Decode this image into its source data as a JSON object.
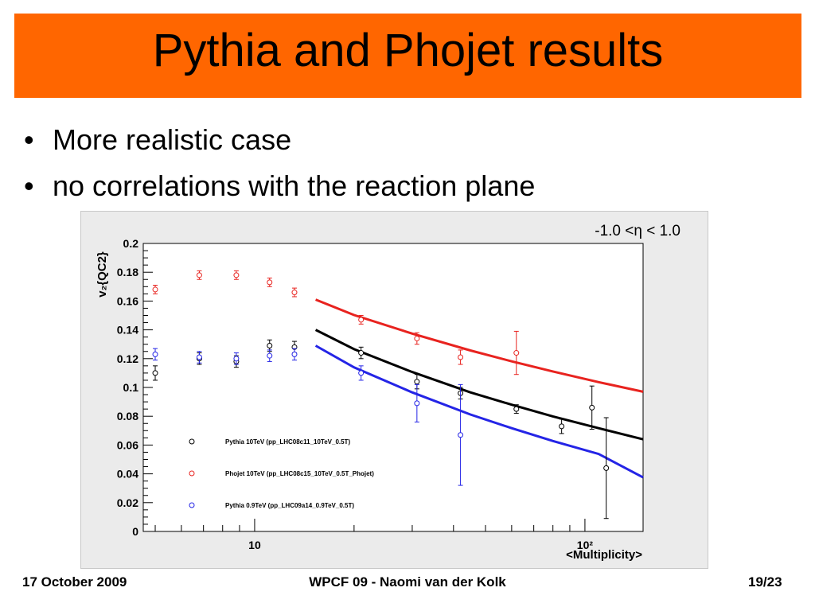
{
  "slide": {
    "title": "Pythia and Phojet results",
    "bullets": [
      "More realistic case",
      "no correlations with the reaction plane"
    ],
    "annotation": "-1.0 <η < 1.0"
  },
  "footer": {
    "date": "17 October 2009",
    "center": "WPCF 09 - Naomi van der Kolk",
    "page": "19/23"
  },
  "chart_data": {
    "type": "scatter",
    "xlabel": "<Multiplicity>",
    "ylabel": "v₂{QC2}",
    "x_scale": "log",
    "xlim": [
      4.6,
      150
    ],
    "ylim": [
      0,
      0.2
    ],
    "y_ticks": [
      0,
      0.02,
      0.04,
      0.06,
      0.08,
      0.1,
      0.12,
      0.14,
      0.16,
      0.18,
      0.2
    ],
    "y_tick_labels": [
      "0",
      "0.02",
      "0.04",
      "0.06",
      "0.08",
      "0.1",
      "0.12",
      "0.14",
      "0.16",
      "0.18",
      "0.2"
    ],
    "x_tick_labels": [
      {
        "value": 10,
        "label": "10"
      },
      {
        "value": 100,
        "label": "10²"
      }
    ],
    "legend_position": "lower-left",
    "series": [
      {
        "name": "Pythia 10TeV (pp_LHC08c11_10TeV_0.5T)",
        "color": "#000000",
        "points": [
          {
            "x": 5.0,
            "y": 0.11,
            "err": 0.005
          },
          {
            "x": 6.8,
            "y": 0.12,
            "err": 0.004
          },
          {
            "x": 8.8,
            "y": 0.118,
            "err": 0.004
          },
          {
            "x": 11.1,
            "y": 0.129,
            "err": 0.004
          },
          {
            "x": 13.2,
            "y": 0.128,
            "err": 0.004
          },
          {
            "x": 21.0,
            "y": 0.124,
            "err": 0.004
          },
          {
            "x": 31.0,
            "y": 0.104,
            "err": 0.005
          },
          {
            "x": 42.0,
            "y": 0.096,
            "err": 0.004
          },
          {
            "x": 62.0,
            "y": 0.085,
            "err": 0.003
          },
          {
            "x": 85.0,
            "y": 0.073,
            "err": 0.005
          },
          {
            "x": 105.0,
            "y": 0.086,
            "err": 0.015
          },
          {
            "x": 116.0,
            "y": 0.044,
            "err": 0.035
          }
        ],
        "fit": [
          {
            "x": 15.3,
            "y": 0.14
          },
          {
            "x": 20,
            "y": 0.1266
          },
          {
            "x": 30,
            "y": 0.1107
          },
          {
            "x": 45,
            "y": 0.0966
          },
          {
            "x": 60,
            "y": 0.088
          },
          {
            "x": 80,
            "y": 0.0799
          },
          {
            "x": 110,
            "y": 0.0717
          },
          {
            "x": 150,
            "y": 0.064
          }
        ]
      },
      {
        "name": "Phojet 10TeV (pp_LHC08c15_10TeV_0.5T_Phojet)",
        "color": "#e8231f",
        "points": [
          {
            "x": 5.0,
            "y": 0.168,
            "err": 0.003
          },
          {
            "x": 6.8,
            "y": 0.178,
            "err": 0.003
          },
          {
            "x": 8.8,
            "y": 0.178,
            "err": 0.003
          },
          {
            "x": 11.1,
            "y": 0.173,
            "err": 0.003
          },
          {
            "x": 13.2,
            "y": 0.166,
            "err": 0.003
          },
          {
            "x": 21.0,
            "y": 0.147,
            "err": 0.003
          },
          {
            "x": 31.0,
            "y": 0.134,
            "err": 0.004
          },
          {
            "x": 42.0,
            "y": 0.121,
            "err": 0.005
          },
          {
            "x": 62.0,
            "y": 0.124,
            "err": 0.015
          }
        ],
        "fit": [
          {
            "x": 15.3,
            "y": 0.161
          },
          {
            "x": 20,
            "y": 0.1503
          },
          {
            "x": 30,
            "y": 0.1374
          },
          {
            "x": 45,
            "y": 0.1257
          },
          {
            "x": 60,
            "y": 0.1181
          },
          {
            "x": 80,
            "y": 0.1111
          },
          {
            "x": 110,
            "y": 0.1037
          },
          {
            "x": 150,
            "y": 0.097
          }
        ]
      },
      {
        "name": "Pythia 0.9TeV (pp_LHC09a14_0.9TeV_0.5T)",
        "color": "#2424e6",
        "points": [
          {
            "x": 5.0,
            "y": 0.123,
            "err": 0.004
          },
          {
            "x": 6.8,
            "y": 0.121,
            "err": 0.004
          },
          {
            "x": 8.8,
            "y": 0.12,
            "err": 0.004
          },
          {
            "x": 11.1,
            "y": 0.122,
            "err": 0.004
          },
          {
            "x": 13.2,
            "y": 0.123,
            "err": 0.004
          },
          {
            "x": 21.0,
            "y": 0.11,
            "err": 0.005
          },
          {
            "x": 31.0,
            "y": 0.089,
            "err": 0.013
          },
          {
            "x": 42.0,
            "y": 0.067,
            "err": 0.035
          }
        ],
        "fit": [
          {
            "x": 15.3,
            "y": 0.129
          },
          {
            "x": 20,
            "y": 0.1139
          },
          {
            "x": 30,
            "y": 0.0966
          },
          {
            "x": 45,
            "y": 0.0812
          },
          {
            "x": 60,
            "y": 0.0717
          },
          {
            "x": 80,
            "y": 0.0628
          },
          {
            "x": 110,
            "y": 0.0538
          },
          {
            "x": 150,
            "y": 0.0375
          }
        ]
      }
    ]
  }
}
